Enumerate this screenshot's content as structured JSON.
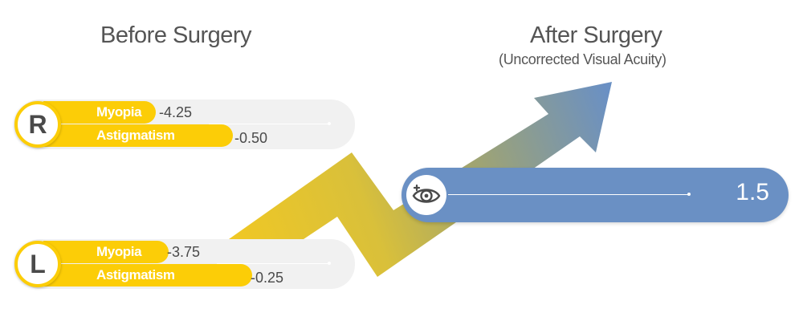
{
  "headings": {
    "before": "Before Surgery",
    "after": "After Surgery",
    "after_sub": "(Uncorrected Visual Acuity)"
  },
  "before": {
    "right": {
      "badge": "R",
      "myopia_label": "Myopia",
      "myopia_value": "-4.25",
      "astigmatism_label": "Astigmatism",
      "astigmatism_value": "-0.50"
    },
    "left": {
      "badge": "L",
      "myopia_label": "Myopia",
      "myopia_value": "-3.75",
      "astigmatism_label": "Astigmatism",
      "astigmatism_value": "-0.25"
    }
  },
  "after": {
    "icon": "eye-icon",
    "value": "1.5"
  },
  "colors": {
    "yellow": "#fccd07",
    "blue": "#6a90c4",
    "panel_gray": "#f1f1f1",
    "text": "#4a4a4a"
  }
}
